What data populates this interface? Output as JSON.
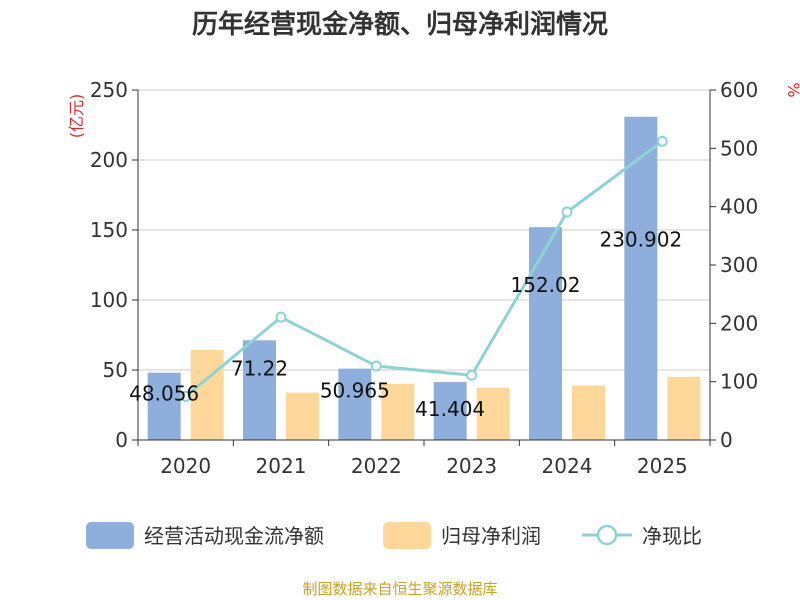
{
  "title": "历年经营现金净额、归母净利润情况",
  "left_unit": "(亿元)",
  "right_unit": "%",
  "source": "制图数据来自恒生聚源数据库",
  "colors": {
    "operating": "#8eafdb",
    "profit": "#fdd89a",
    "ratio": "#8dd3d6",
    "unit": "#d92b2b",
    "source": "#c9a227",
    "grid": "#cccccc",
    "axis": "#333333"
  },
  "chart_data": {
    "type": "bar",
    "categories": [
      "2020",
      "2021",
      "2022",
      "2023",
      "2024",
      "2025"
    ],
    "y_left": {
      "min": 0,
      "max": 250,
      "ticks": [
        "0",
        "50",
        "100",
        "150",
        "200",
        "250"
      ]
    },
    "y_right": {
      "min": 0,
      "max": 600,
      "ticks": [
        "0",
        "100",
        "200",
        "300",
        "400",
        "500",
        "600"
      ]
    },
    "grid": true,
    "legend_position": "bottom",
    "series": [
      {
        "name": "经营活动现金流净额",
        "type": "bar",
        "axis": "left",
        "values": [
          48.056,
          71.22,
          50.965,
          41.404,
          152.02,
          230.902
        ],
        "labels": [
          "48.056",
          "71.22",
          "50.965",
          "41.404",
          "152.02",
          "230.902"
        ]
      },
      {
        "name": "归母净利润",
        "type": "bar",
        "axis": "left",
        "values": [
          64.3,
          33.8,
          40.2,
          37.3,
          38.9,
          45.1
        ]
      },
      {
        "name": "净现比",
        "type": "line",
        "axis": "right",
        "values": [
          74.7,
          210.6,
          126.8,
          111.0,
          390.8,
          512.0
        ]
      }
    ]
  }
}
